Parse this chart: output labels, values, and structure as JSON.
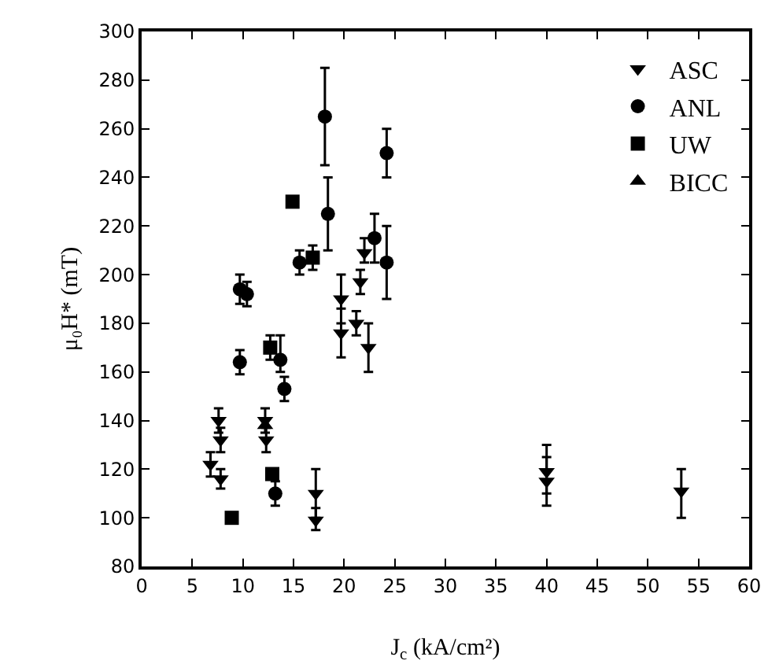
{
  "chart_data": {
    "type": "scatter",
    "xlabel": "J$_{c}$ (kA/cm²)",
    "ylabel": "μ₀H* (mT)",
    "xlim": [
      0,
      60
    ],
    "xticks": [
      0,
      5,
      10,
      15,
      20,
      25,
      30,
      35,
      40,
      45,
      50,
      55,
      60
    ],
    "ylim": [
      80,
      300
    ],
    "yticks": [
      80,
      100,
      120,
      140,
      160,
      180,
      200,
      220,
      240,
      260,
      280,
      300
    ],
    "grid": false,
    "legend": "top right",
    "series": [
      {
        "name": "ASC",
        "color": "#000000",
        "marker": "triangle-down",
        "x": [
          19.7,
          21.6,
          22,
          19.7,
          21.2,
          22.4,
          7.6,
          7.8,
          6.8,
          7.8,
          12.2,
          12.3,
          17.2,
          17.2,
          40,
          40,
          53.3
        ],
        "values": [
          190,
          197,
          209,
          176,
          180,
          170,
          140,
          132,
          122,
          116,
          140,
          132,
          110,
          99,
          119,
          115,
          111
        ],
        "errors": [
          [
            180,
            200
          ],
          [
            192,
            202
          ],
          [
            205,
            215
          ],
          [
            166,
            186
          ],
          [
            175,
            185
          ],
          [
            160,
            180
          ],
          [
            135,
            145
          ],
          [
            127,
            137
          ],
          [
            117,
            127
          ],
          [
            112,
            120
          ],
          [
            135,
            145
          ],
          [
            127,
            137
          ],
          [
            100,
            120
          ],
          [
            95,
            104
          ],
          [
            110,
            130
          ],
          [
            105,
            125
          ],
          [
            100,
            120
          ]
        ]
      },
      {
        "name": "ANL",
        "color": "#000000",
        "marker": "circle",
        "x": [
          18.1,
          24.2,
          18.4,
          23,
          24.2,
          15.6,
          9.7,
          10.4,
          9.7,
          13.7,
          14.1,
          13.2
        ],
        "values": [
          265,
          250,
          225,
          215,
          205,
          205,
          194,
          192,
          164,
          165,
          153,
          110
        ],
        "errors": [
          [
            245,
            285
          ],
          [
            240,
            260
          ],
          [
            210,
            240
          ],
          [
            205,
            225
          ],
          [
            190,
            220
          ],
          [
            200,
            210
          ],
          [
            188,
            200
          ],
          [
            187,
            197
          ],
          [
            159,
            169
          ],
          [
            160,
            175
          ],
          [
            148,
            158
          ],
          [
            105,
            115
          ]
        ]
      },
      {
        "name": "UW",
        "color": "#000000",
        "marker": "square",
        "x": [
          14.9,
          16.9,
          12.7,
          12.9,
          8.9
        ],
        "values": [
          230,
          207,
          170,
          118,
          100
        ],
        "errors": [
          null,
          [
            202,
            212
          ],
          [
            165,
            175
          ],
          null,
          null
        ]
      },
      {
        "name": "BICC",
        "color": "#000000",
        "marker": "triangle",
        "x": [
          12.2
        ],
        "values": [
          138
        ]
      }
    ]
  }
}
